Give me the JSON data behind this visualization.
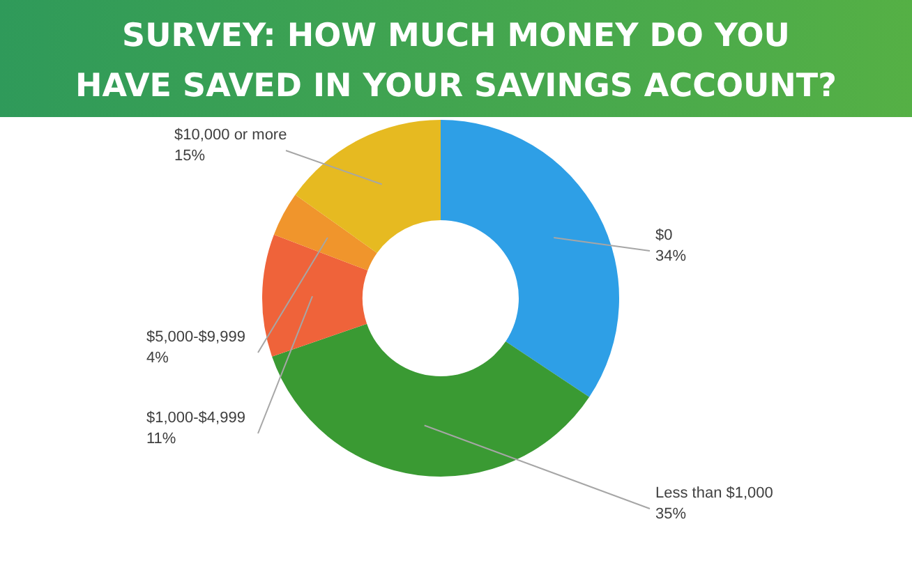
{
  "chart_data": {
    "type": "donut",
    "title": "SURVEY: HOW MUCH MONEY DO YOU HAVE SAVED IN YOUR SAVINGS ACCOUNT?",
    "categories": [
      "$0",
      "Less than $1,000",
      "$1,000-$4,999",
      "$5,000-$9,999",
      "$10,000 or more"
    ],
    "values": [
      34,
      35,
      11,
      4,
      15
    ],
    "value_labels": [
      "34%",
      "35%",
      "11%",
      "4%",
      "15%"
    ],
    "colors": [
      "#2e9fe6",
      "#3a9a33",
      "#ef633a",
      "#f0952c",
      "#e6ba21"
    ]
  }
}
